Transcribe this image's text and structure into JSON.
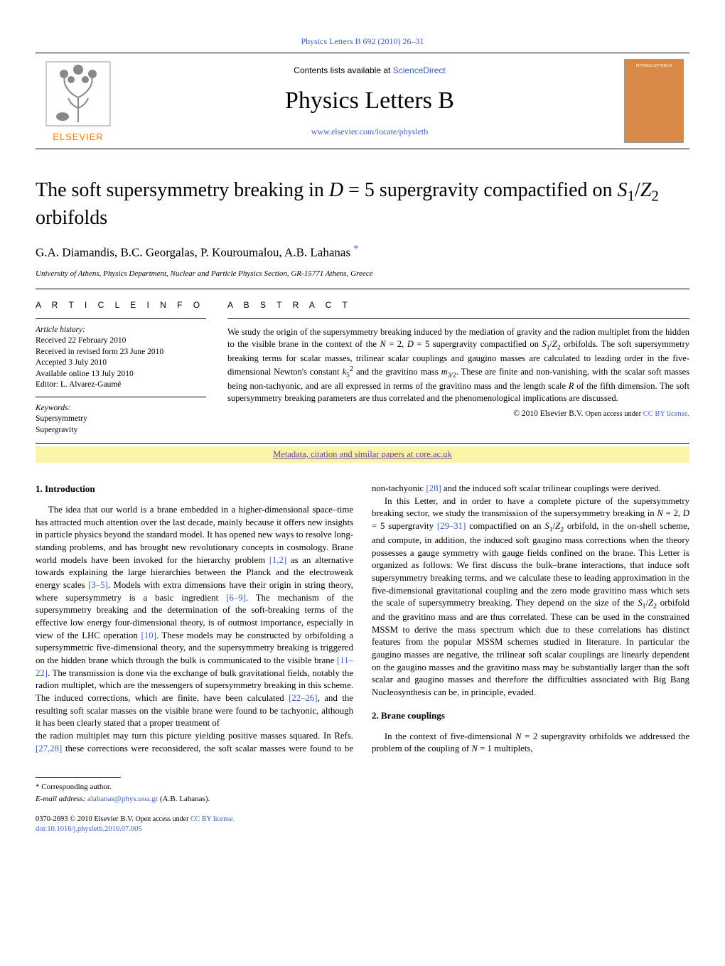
{
  "header": {
    "citation": "Physics Letters B 692 (2010) 26–31",
    "contents_prefix": "Contents lists available at ",
    "contents_link": "ScienceDirect",
    "journal_title": "Physics Letters B",
    "journal_url": "www.elsevier.com/locate/physletb",
    "publisher": "ELSEVIER",
    "cover_label": "PHYSICS LETTERS B"
  },
  "article": {
    "title_html": "The soft supersymmetry breaking in <span class='math-var'>D</span> = 5 supergravity compactified on <span class='math-var'>S</span><sub>1</sub>/<span class='math-var'>Z</span><sub>2</sub> orbifolds",
    "authors": "G.A. Diamandis, B.C. Georgalas, P. Kouroumalou, A.B. Lahanas",
    "corr_mark": "*",
    "affiliation": "University of Athens, Physics Department, Nuclear and Particle Physics Section, GR-15771 Athens, Greece"
  },
  "info": {
    "heading": "A R T I C L E   I N F O",
    "history_label": "Article history:",
    "history": [
      "Received 22 February 2010",
      "Received in revised form 23 June 2010",
      "Accepted 3 July 2010",
      "Available online 13 July 2010",
      "Editor: L. Alvarez-Gaumé"
    ],
    "keywords_label": "Keywords:",
    "keywords": [
      "Supersymmetry",
      "Supergravity"
    ]
  },
  "abstract": {
    "heading": "A B S T R A C T",
    "text_html": "We study the origin of the supersymmetry breaking induced by the mediation of gravity and the radion multiplet from the hidden to the visible brane in the context of the <span class='ital'>N</span> = 2, <span class='ital'>D</span> = 5 supergravity compactified on <span class='ital'>S</span><sub>1</sub>/<span class='ital'>Z</span><sub>2</sub> orbifolds. The soft supersymmetry breaking terms for scalar masses, trilinear scalar couplings and gaugino masses are calculated to leading order in the five-dimensional Newton's constant <span class='ital'>k</span><sub>5</sub><sup>2</sup> and the gravitino mass <span class='ital'>m</span><sub>3/2</sub>. These are finite and non-vanishing, with the scalar soft masses being non-tachyonic, and are all expressed in terms of the gravitino mass and the length scale <span class='ital'>R</span> of the fifth dimension. The soft supersymmetry breaking parameters are thus correlated and the phenomenological implications are discussed.",
    "copyright_prefix": "© 2010 Elsevier B.V. ",
    "copyright_open": "Open access under ",
    "copyright_link": "CC BY license."
  },
  "core_banner": {
    "text": "Metadata, citation and similar papers at core.ac.uk"
  },
  "sections": {
    "s1_title": "1. Introduction",
    "s1_p1_html": "The idea that our world is a brane embedded in a higher-dimensional space–time has attracted much attention over the last decade, mainly because it offers new insights in particle physics beyond the standard model. It has opened new ways to resolve long-standing problems, and has brought new revolutionary concepts in cosmology. Brane world models have been invoked for the hierarchy problem <span class='ref'>[1,2]</span> as an alternative towards explaining the large hierarchies between the Planck and the electroweak energy scales <span class='ref'>[3–5]</span>. Models with extra dimensions have their origin in string theory, where supersymmetry is a basic ingredient <span class='ref'>[6–9]</span>. The mechanism of the supersymmetry breaking and the determination of the soft-breaking terms of the effective low energy four-dimensional theory, is of outmost importance, especially in view of the LHC operation <span class='ref'>[10]</span>. These models may be constructed by orbifolding a supersymmetric five-dimensional theory, and the supersymmetry breaking is triggered on the hidden brane which through the bulk is communicated to the visible brane <span class='ref'>[11–22]</span>. The transmission is done via the exchange of bulk gravitational fields, notably the radion multiplet, which are the messengers of supersymmetry breaking in this scheme. The induced corrections, which are finite, have been calculated <span class='ref'>[22–26]</span>, and the resulting soft scalar masses on the visible brane were found to be tachyonic, although it has been clearly stated that a proper treatment of",
    "s1_p2_html": "the radion multiplet may turn this picture yielding positive masses squared. In Refs. <span class='ref'>[27,28]</span> these corrections were reconsidered, the soft scalar masses were found to be non-tachyonic <span class='ref'>[28]</span> and the induced soft scalar trilinear couplings were derived.",
    "s1_p3_html": "In this Letter, and in order to have a complete picture of the supersymmetry breaking sector, we study the transmission of the supersymmetry breaking in <span class='ital'>N</span> = 2, <span class='ital'>D</span> = 5 supergravity <span class='ref'>[29–31]</span> compactified on an <span class='ital'>S</span><sub>1</sub>/<span class='ital'>Z</span><sub>2</sub> orbifold, in the on-shell scheme, and compute, in addition, the induced soft gaugino mass corrections when the theory possesses a gauge symmetry with gauge fields confined on the brane. This Letter is organized as follows: We first discuss the bulk–brane interactions, that induce soft supersymmetry breaking terms, and we calculate these to leading approximation in the five-dimensional gravitational coupling and the zero mode gravitino mass which sets the scale of supersymmetry breaking. They depend on the size of the <span class='ital'>S</span><sub>1</sub>/<span class='ital'>Z</span><sub>2</sub> orbifold and the gravitino mass and are thus correlated. These can be used in the constrained MSSM to derive the mass spectrum which due to these correlations has distinct features from the popular MSSM schemes studied in literature. In particular the gaugino masses are negative, the trilinear soft scalar couplings are linearly dependent on the gaugino masses and the gravitino mass may be substantially larger than the soft scalar and gaugino masses and therefore the difficulties associated with Big Bang Nucleosynthesis can be, in principle, evaded.",
    "s2_title": "2. Brane couplings",
    "s2_p1_html": "In the context of five-dimensional <span class='ital'>N</span> = 2 supergravity orbifolds we addressed the problem of the coupling of <span class='ital'>N</span> = 1 multiplets,"
  },
  "footer": {
    "corr_mark": "*",
    "corr_text": "Corresponding author.",
    "email_label": "E-mail address: ",
    "email": "alahanas@phys.uoa.gr",
    "email_suffix": " (A.B. Lahanas).",
    "issn_line": "0370-2693 © 2010 Elsevier B.V. ",
    "open_access": "Open access under ",
    "license_link": "CC BY license.",
    "doi": "doi:10.1016/j.physletb.2010.07.005"
  },
  "colors": {
    "link": "#3b5fc4",
    "elsevier_orange": "#ff7a00",
    "banner_bg": "#f9f4a8",
    "banner_link": "#6a3aa0",
    "cover_bg": "#d98a47"
  }
}
